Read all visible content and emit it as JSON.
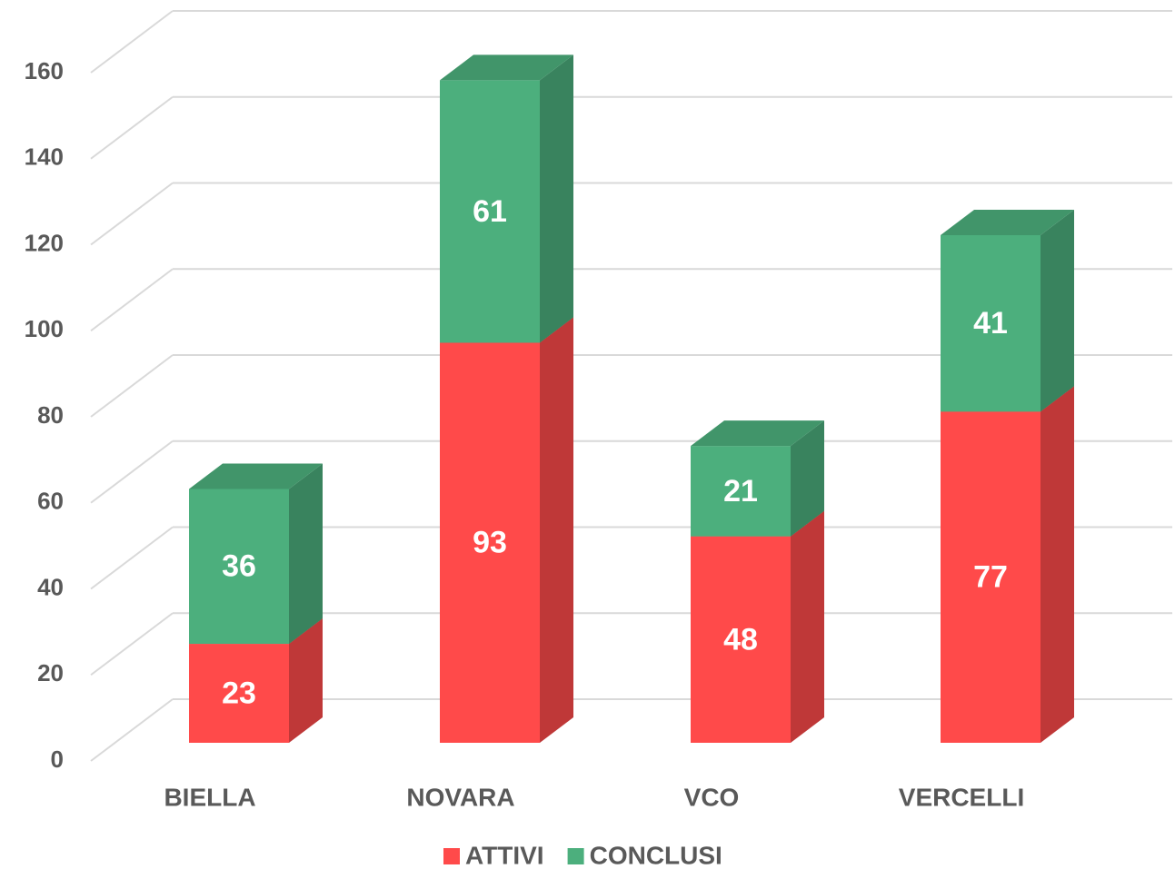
{
  "chart_data": {
    "type": "bar3d_stacked",
    "categories": [
      "BIELLA",
      "NOVARA",
      "VCO",
      "VERCELLI"
    ],
    "series": [
      {
        "name": "ATTIVI",
        "color": "#ff4a4a",
        "values": [
          23,
          93,
          48,
          77
        ]
      },
      {
        "name": "CONCLUSI",
        "color": "#4caf7d",
        "values": [
          36,
          61,
          21,
          41
        ]
      }
    ],
    "ylim": [
      0,
      160
    ],
    "yticks": [
      0,
      20,
      40,
      60,
      80,
      100,
      120,
      140,
      160
    ],
    "grid": true,
    "legend": "bottom"
  }
}
